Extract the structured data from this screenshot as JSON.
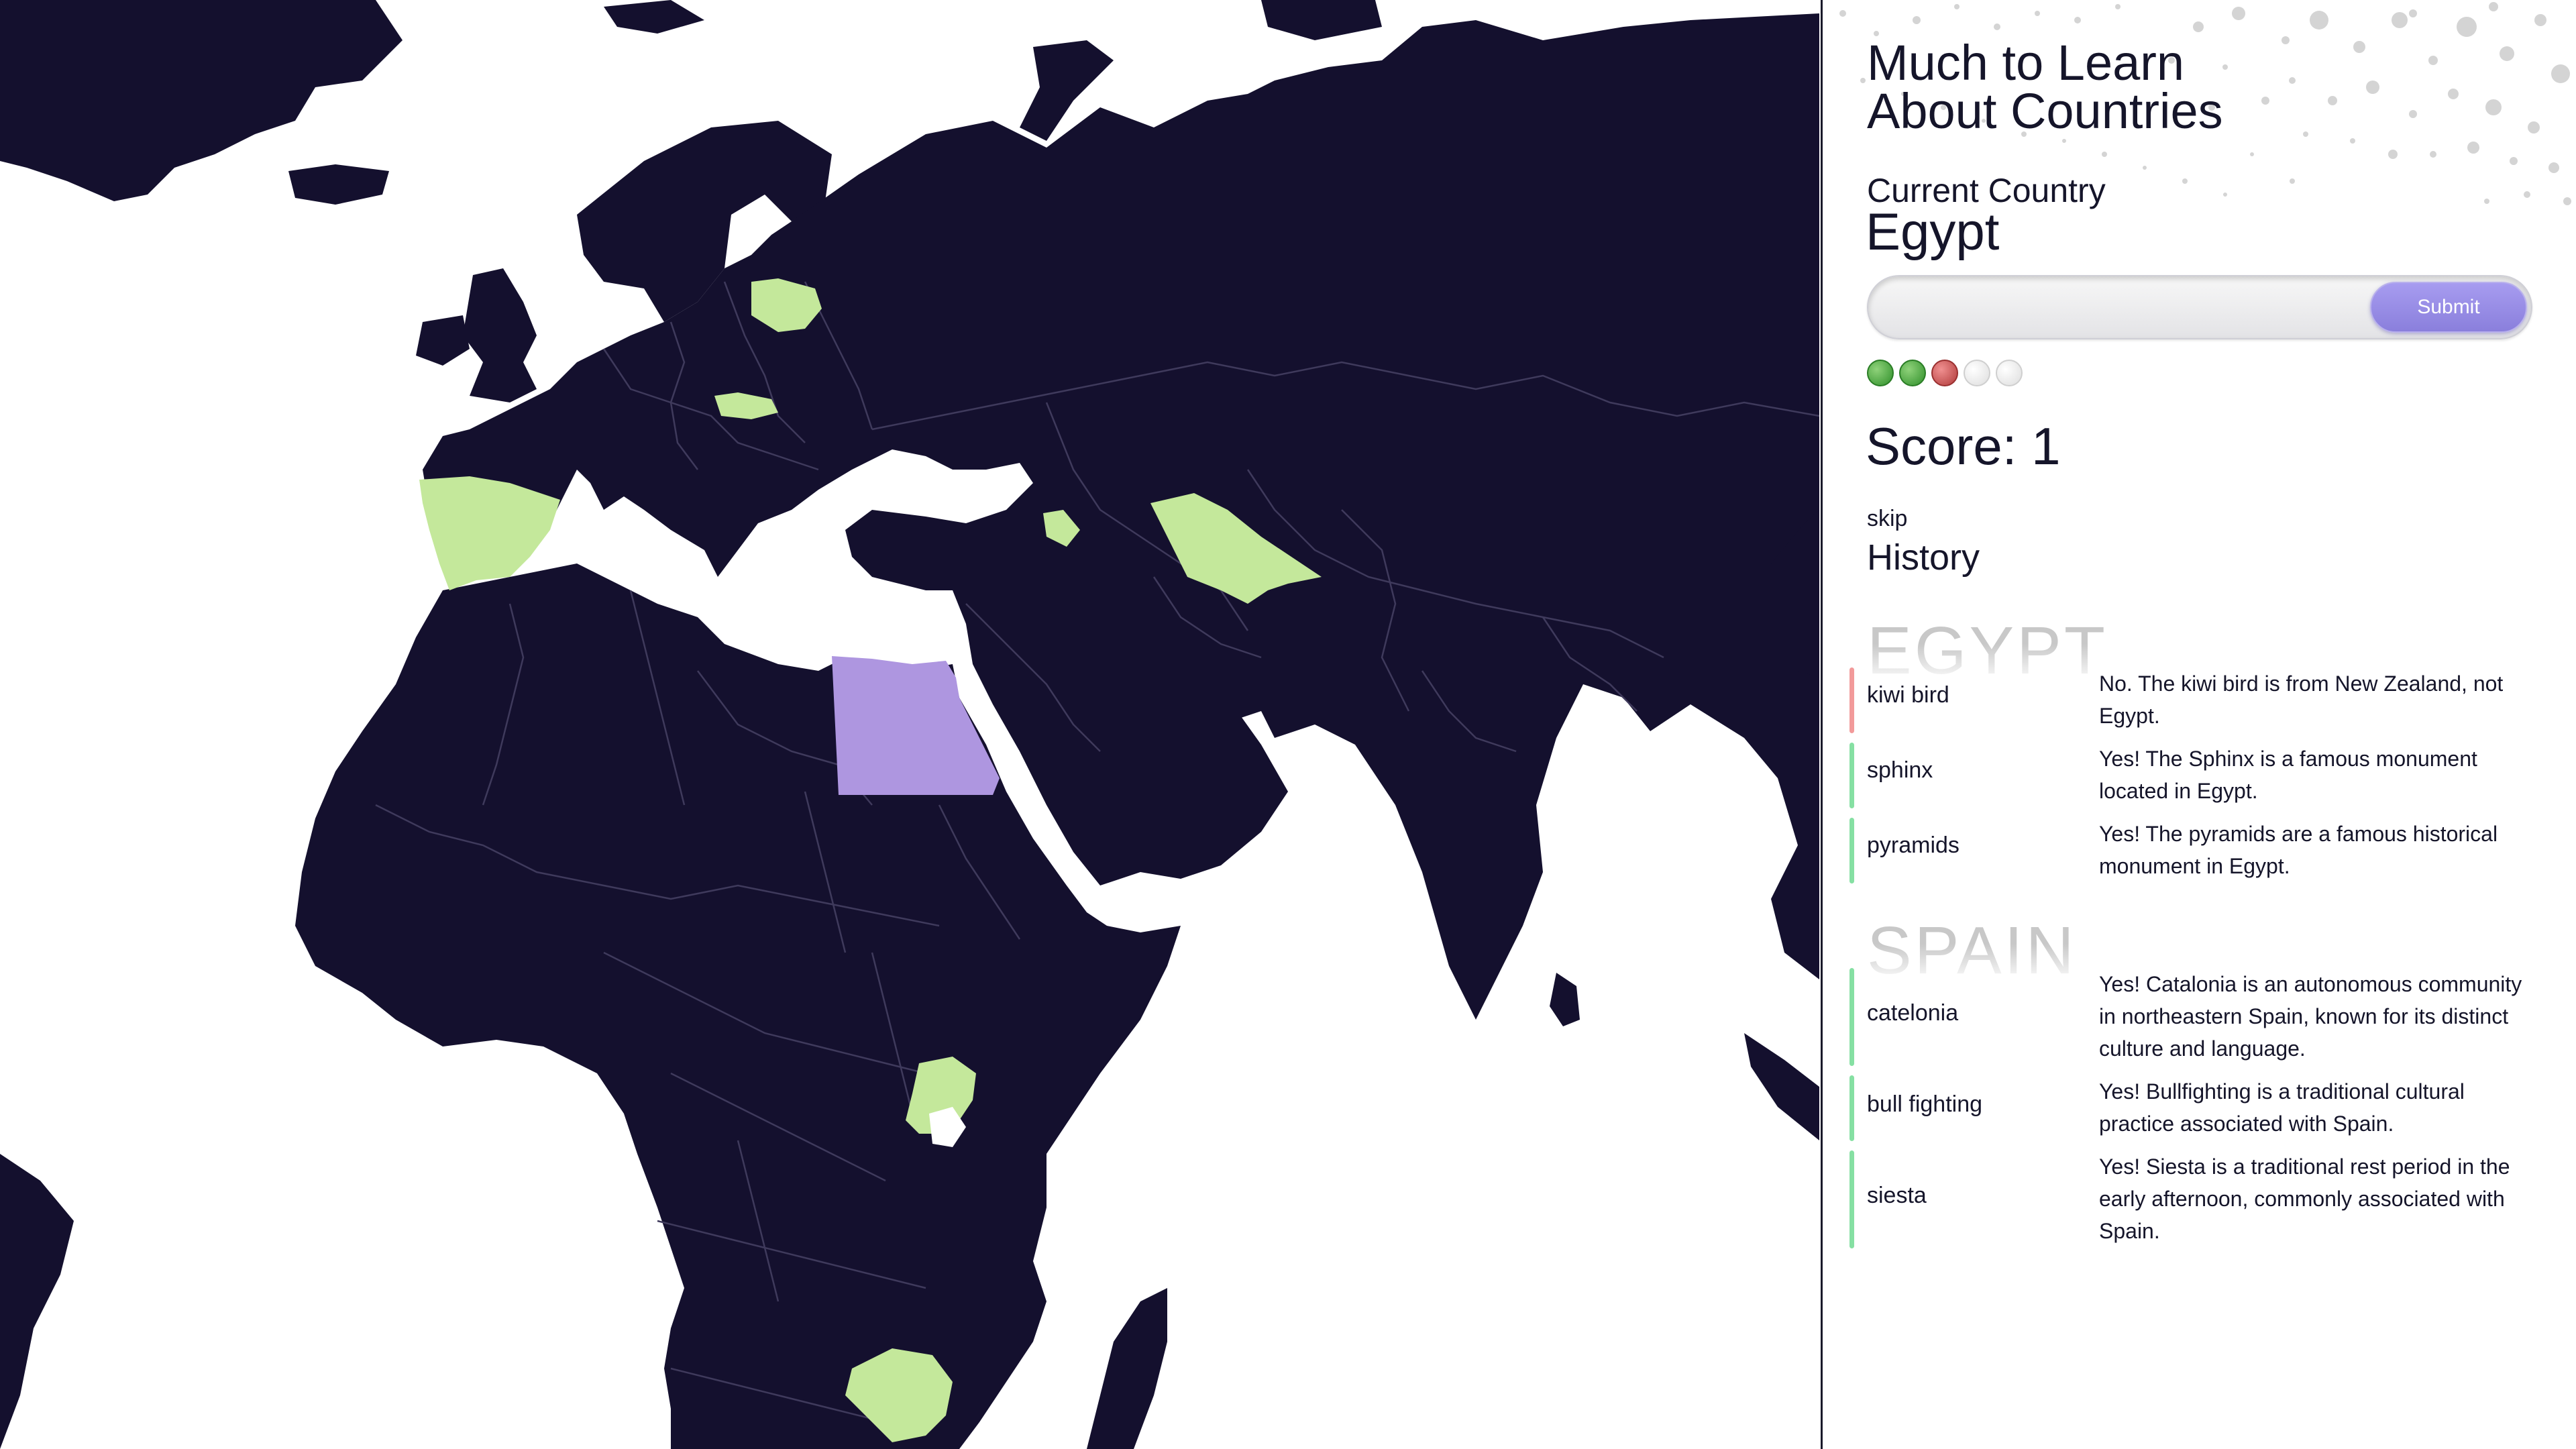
{
  "app": {
    "title": "Much to Learn\nAbout Countries"
  },
  "current": {
    "label": "Current Country",
    "country": "Egypt"
  },
  "answer": {
    "value": "",
    "submit_label": "Submit"
  },
  "attempts": [
    "correct",
    "correct",
    "wrong",
    "empty",
    "empty"
  ],
  "score": {
    "text": "Score: 1"
  },
  "skip_label": "skip",
  "history": {
    "heading": "History",
    "groups": [
      {
        "country": "EGYPT",
        "items": [
          {
            "guess": "kiwi bird",
            "correct": false,
            "feedback": "No. The kiwi bird is from New Zealand, not Egypt."
          },
          {
            "guess": "sphinx",
            "correct": true,
            "feedback": "Yes! The Sphinx is a famous monument located in Egypt."
          },
          {
            "guess": "pyramids",
            "correct": true,
            "feedback": "Yes! The pyramids are a famous historical monument in Egypt."
          }
        ]
      },
      {
        "country": "SPAIN",
        "items": [
          {
            "guess": "catelonia",
            "correct": true,
            "feedback": "Yes! Catalonia is an autonomous community in northeastern Spain, known for its distinct culture and language."
          },
          {
            "guess": "bull fighting",
            "correct": true,
            "feedback": "Yes! Bullfighting is a traditional cultural practice associated with Spain."
          },
          {
            "guess": "siesta",
            "correct": true,
            "feedback": "Yes! Siesta is a traditional rest period in the early afternoon, commonly associated with Spain."
          }
        ]
      }
    ]
  },
  "map": {
    "colors": {
      "land": "#14102e",
      "water": "#ffffff",
      "guessed_correct": "#c4e89b",
      "current": "#ae96e0"
    },
    "current_country": "Egypt",
    "guessed_countries": [
      "Lithuania",
      "Slovakia",
      "Spain",
      "Armenia",
      "Turkmenistan",
      "Uganda",
      "Zimbabwe"
    ]
  }
}
